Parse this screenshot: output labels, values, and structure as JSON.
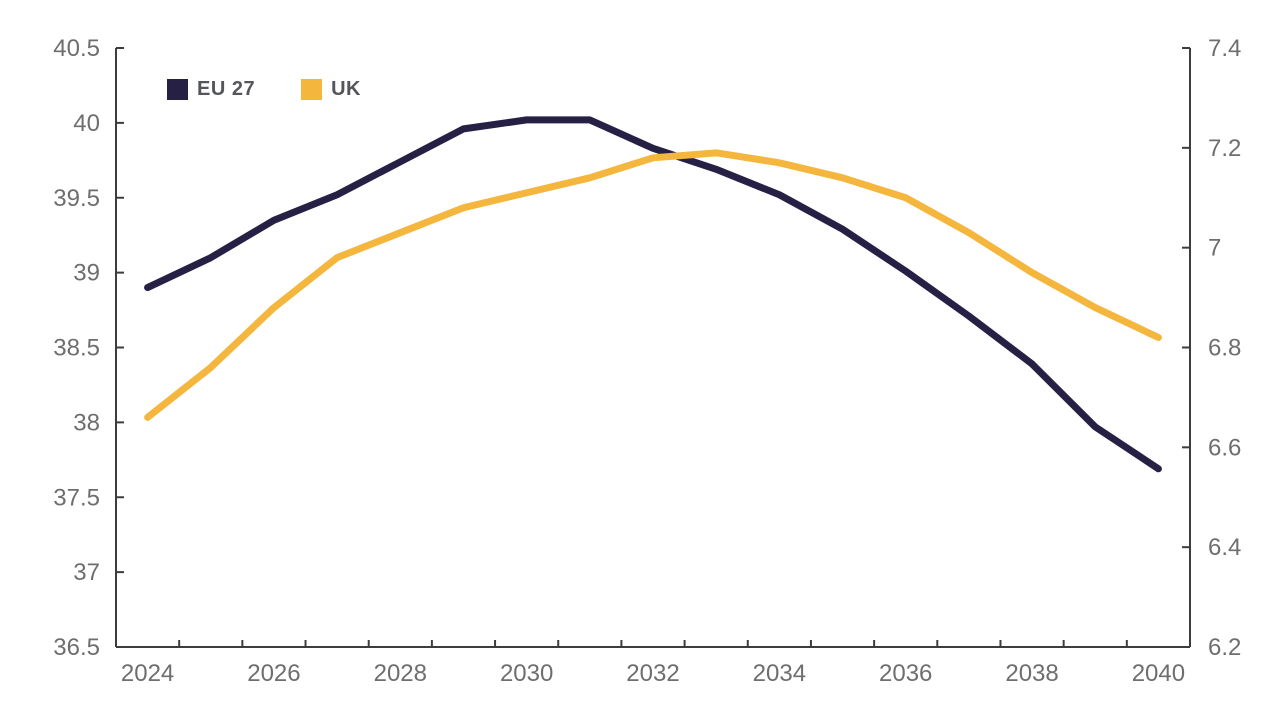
{
  "page": {
    "background": "#FFFFFF"
  },
  "chart_data": {
    "type": "line",
    "title": "",
    "x": [
      2024,
      2025,
      2026,
      2027,
      2028,
      2029,
      2030,
      2031,
      2032,
      2033,
      2034,
      2035,
      2036,
      2037,
      2038,
      2039,
      2040
    ],
    "x_tick_labels": [
      "2024",
      "2026",
      "2028",
      "2030",
      "2032",
      "2034",
      "2036",
      "2038",
      "2040"
    ],
    "x_label_every": 2,
    "series": [
      {
        "name": "EU 27",
        "axis": "left",
        "color": "#262045",
        "values": [
          38.9,
          39.1,
          39.35,
          39.52,
          39.74,
          39.96,
          40.02,
          40.02,
          39.83,
          39.69,
          39.52,
          39.29,
          39.01,
          38.71,
          38.39,
          37.97,
          37.69
        ]
      },
      {
        "name": "UK",
        "axis": "right",
        "color": "#F4B63D",
        "values": [
          6.66,
          6.76,
          6.88,
          6.98,
          7.03,
          7.08,
          7.11,
          7.14,
          7.18,
          7.19,
          7.17,
          7.14,
          7.1,
          7.03,
          6.95,
          6.88,
          6.82
        ]
      }
    ],
    "left_axis": {
      "min": 36.5,
      "max": 40.5,
      "step": 0.5,
      "labels": [
        "36.5",
        "37",
        "37.5",
        "38",
        "38.5",
        "39",
        "39.5",
        "40",
        "40.5"
      ]
    },
    "right_axis": {
      "min": 6.2,
      "max": 7.4,
      "step": 0.2,
      "labels": [
        "6.2",
        "6.4",
        "6.6",
        "6.8",
        "7",
        "7.2",
        "7.4"
      ]
    },
    "legend": {
      "position": "top-left",
      "items": [
        {
          "label": "EU 27"
        },
        {
          "label": "UK"
        }
      ]
    },
    "grid": false,
    "axis_color": "#3D3D3D",
    "tick_label_color": "#6E6E6E",
    "legend_text_color": "#55565B"
  }
}
